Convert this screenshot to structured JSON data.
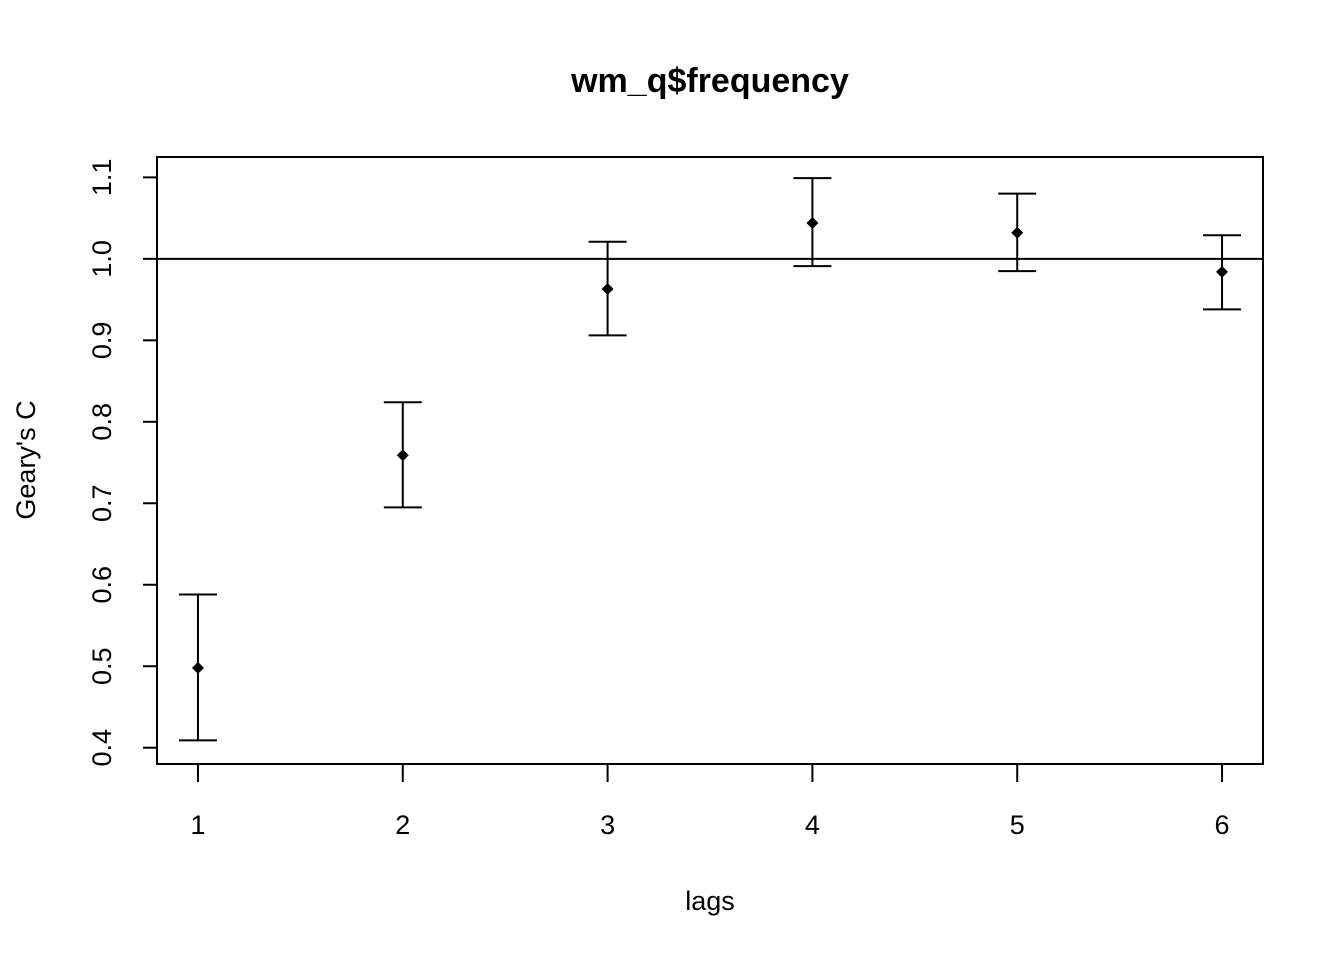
{
  "chart_data": {
    "type": "scatter",
    "title": "wm_q$frequency",
    "xlabel": "lags",
    "ylabel": "Geary's C",
    "x": [
      1,
      2,
      3,
      4,
      5,
      6
    ],
    "series": [
      {
        "values": [
          0.498,
          0.759,
          0.963,
          1.044,
          1.032,
          0.984
        ],
        "lower": [
          0.409,
          0.695,
          0.906,
          0.991,
          0.985,
          0.938
        ],
        "upper": [
          0.588,
          0.824,
          1.021,
          1.099,
          1.08,
          1.029
        ]
      }
    ],
    "reference_line": 1.0,
    "xlim": [
      0.8,
      6.2
    ],
    "ylim": [
      0.38,
      1.125
    ],
    "x_ticks": [
      "1",
      "2",
      "3",
      "4",
      "5",
      "6"
    ],
    "y_ticks": [
      "0.4",
      "0.5",
      "0.6",
      "0.7",
      "0.8",
      "0.9",
      "1.0",
      "1.1"
    ],
    "grid": false,
    "marker": "diamond",
    "error_bars": true
  }
}
